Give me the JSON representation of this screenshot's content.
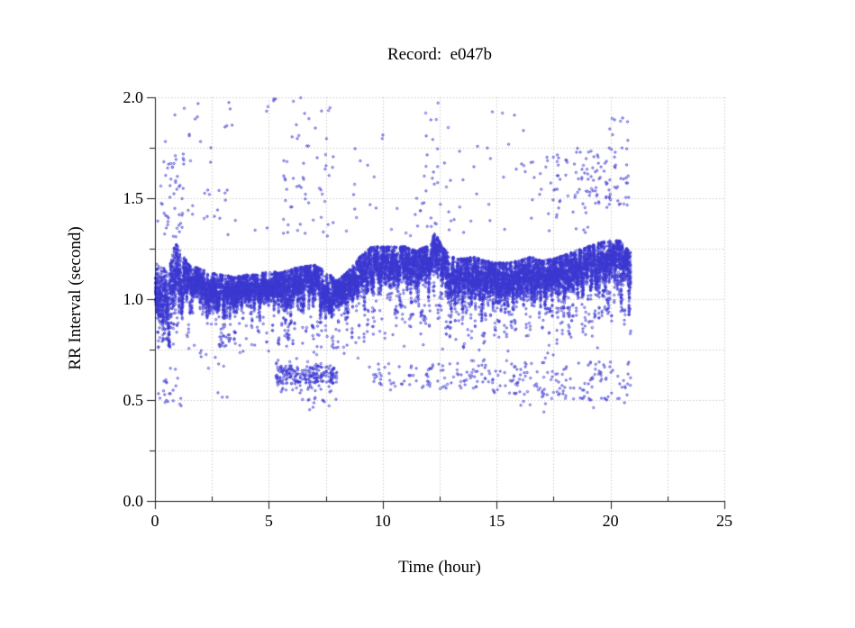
{
  "page": {
    "background": "#ffffff"
  },
  "chart_data": {
    "type": "scatter",
    "title": "Record:  e047b",
    "xlabel": "Time (hour)",
    "ylabel": "RR Interval (second)",
    "xlim": [
      0,
      25
    ],
    "ylim": [
      0,
      2
    ],
    "x_major_ticks": [
      0,
      5,
      10,
      15,
      20,
      25
    ],
    "x_tick_labels": [
      "0",
      "5",
      "10",
      "15",
      "20",
      "25"
    ],
    "x_minor_ticks": [
      2.5,
      7.5,
      12.5,
      17.5,
      22.5
    ],
    "y_major_ticks": [
      0,
      0.5,
      1,
      1.5,
      2
    ],
    "y_tick_labels": [
      "0.0",
      "0.5",
      "1.0",
      "1.5",
      "2.0"
    ],
    "y_minor_ticks": [
      0.25,
      0.75,
      1.25,
      1.75
    ],
    "grid_style": "dotted",
    "grid_x_step": 2.5,
    "grid_y_step": 0.25,
    "grid_color": "#b4b4b4",
    "axis_color": "#1a1a1a",
    "point_color": "#3b37d0",
    "legend": "none",
    "data_end_hour": 20.9,
    "n_points_main": 15000,
    "main_band": {
      "comment": "dense RR band: knot hours, band center (s), band half-width (s)",
      "hours": [
        0.0,
        0.3,
        0.6,
        0.9,
        1.2,
        1.5,
        2.0,
        2.5,
        3.0,
        3.5,
        4.0,
        4.5,
        5.0,
        5.5,
        6.0,
        6.5,
        7.0,
        7.5,
        8.0,
        8.5,
        9.0,
        9.5,
        10.0,
        10.5,
        11.0,
        11.5,
        12.0,
        12.3,
        12.6,
        13.0,
        13.5,
        14.0,
        14.5,
        15.0,
        15.5,
        16.0,
        16.5,
        17.0,
        17.5,
        18.0,
        18.5,
        19.0,
        19.5,
        20.0,
        20.4,
        20.9
      ],
      "center": [
        1.08,
        1.02,
        0.98,
        1.15,
        1.12,
        1.08,
        1.07,
        1.05,
        1.03,
        1.03,
        1.05,
        1.05,
        1.06,
        1.04,
        1.05,
        1.06,
        1.07,
        1.04,
        1.02,
        1.06,
        1.12,
        1.17,
        1.17,
        1.16,
        1.17,
        1.14,
        1.18,
        1.24,
        1.16,
        1.1,
        1.1,
        1.11,
        1.09,
        1.08,
        1.09,
        1.1,
        1.11,
        1.09,
        1.1,
        1.12,
        1.14,
        1.16,
        1.18,
        1.2,
        1.19,
        1.13
      ],
      "halfwidth": [
        0.1,
        0.14,
        0.16,
        0.13,
        0.1,
        0.09,
        0.08,
        0.08,
        0.09,
        0.08,
        0.07,
        0.07,
        0.08,
        0.09,
        0.1,
        0.1,
        0.1,
        0.1,
        0.07,
        0.08,
        0.09,
        0.09,
        0.09,
        0.1,
        0.09,
        0.1,
        0.09,
        0.09,
        0.1,
        0.11,
        0.1,
        0.1,
        0.1,
        0.1,
        0.09,
        0.09,
        0.1,
        0.1,
        0.1,
        0.1,
        0.1,
        0.1,
        0.1,
        0.09,
        0.1,
        0.1
      ]
    },
    "cluster_fields": [
      "t_start_hour",
      "t_end_hour",
      "rr_min",
      "rr_max",
      "count"
    ],
    "upper_outlier_clusters": [
      [
        0.2,
        1.3,
        1.3,
        1.72,
        45
      ],
      [
        0.3,
        2.6,
        1.75,
        1.98,
        10
      ],
      [
        1.5,
        3.2,
        1.38,
        1.72,
        15
      ],
      [
        2.5,
        4.0,
        1.85,
        1.98,
        5
      ],
      [
        4.6,
        5.5,
        1.88,
        2.0,
        5
      ],
      [
        5.6,
        7.9,
        1.3,
        1.76,
        40
      ],
      [
        5.9,
        7.7,
        1.78,
        2.0,
        13
      ],
      [
        8.5,
        10.2,
        1.45,
        1.92,
        10
      ],
      [
        11.3,
        13.6,
        1.32,
        1.75,
        26
      ],
      [
        11.8,
        13.3,
        1.78,
        2.0,
        7
      ],
      [
        14.0,
        16.3,
        1.42,
        1.95,
        16
      ],
      [
        16.5,
        18.4,
        1.4,
        1.72,
        35
      ],
      [
        18.4,
        20.8,
        1.45,
        1.75,
        90
      ],
      [
        19.5,
        20.8,
        1.78,
        1.95,
        8
      ],
      [
        0.0,
        20.9,
        1.3,
        1.45,
        40
      ]
    ],
    "lower_clusters": [
      [
        0.15,
        1.15,
        0.47,
        0.66,
        22
      ],
      [
        2.3,
        3.3,
        0.5,
        0.72,
        7
      ],
      [
        5.25,
        8.0,
        0.58,
        0.67,
        200
      ],
      [
        5.3,
        8.0,
        0.54,
        0.7,
        50
      ],
      [
        6.2,
        8.3,
        0.44,
        0.56,
        16
      ],
      [
        9.4,
        12.6,
        0.55,
        0.68,
        55
      ],
      [
        12.6,
        14.7,
        0.55,
        0.7,
        50
      ],
      [
        14.8,
        17.1,
        0.52,
        0.7,
        60
      ],
      [
        17.2,
        20.9,
        0.5,
        0.7,
        90
      ],
      [
        16.0,
        20.8,
        0.44,
        0.52,
        10
      ],
      [
        0.0,
        20.9,
        0.7,
        0.85,
        40
      ]
    ]
  }
}
